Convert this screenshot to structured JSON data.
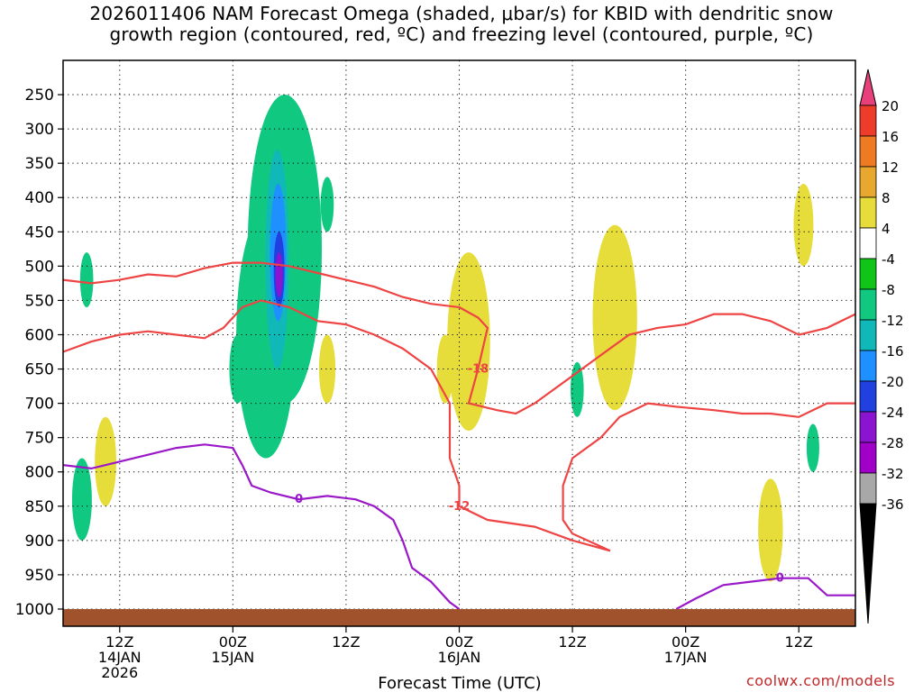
{
  "chart_data": {
    "type": "heatmap",
    "title_line1": "2026011406 NAM Forecast Omega (shaded, μbar/s) for KBID with dendritic snow",
    "title_line2": "growth region (contoured, red, ºC) and freezing level (contoured, purple, ºC)",
    "xlabel": "Forecast Time (UTC)",
    "ylabel": "",
    "credit": "coolwx.com/models",
    "y_axis": {
      "ticks": [
        250,
        300,
        350,
        400,
        450,
        500,
        550,
        600,
        650,
        700,
        750,
        800,
        850,
        900,
        950,
        1000
      ],
      "ylim": [
        200,
        1025
      ]
    },
    "x_axis": {
      "xlim": [
        0,
        84
      ],
      "ticks": [
        {
          "hour": 6,
          "lines": [
            "12Z",
            "14JAN",
            "2026"
          ]
        },
        {
          "hour": 18,
          "lines": [
            "00Z",
            "15JAN"
          ]
        },
        {
          "hour": 30,
          "lines": [
            "12Z"
          ]
        },
        {
          "hour": 42,
          "lines": [
            "00Z",
            "16JAN"
          ]
        },
        {
          "hour": 54,
          "lines": [
            "12Z"
          ]
        },
        {
          "hour": 66,
          "lines": [
            "00Z",
            "17JAN"
          ]
        },
        {
          "hour": 78,
          "lines": [
            "12Z"
          ]
        }
      ]
    },
    "colorbar": {
      "labels": [
        "20",
        "16",
        "12",
        "8",
        "4",
        "-4",
        "-8",
        "-12",
        "-16",
        "-20",
        "-24",
        "-28",
        "-32",
        "-36"
      ],
      "colors": [
        "#e8407a",
        "#ee3c2a",
        "#ee7a24",
        "#e8a830",
        "#e6dc3a",
        "#ffffff",
        "#10c418",
        "#10c880",
        "#10b8b8",
        "#1e90ff",
        "#2040e0",
        "#8a14d0",
        "#a000c8",
        "#a8a8a8",
        "#000000"
      ]
    },
    "contours": [
      {
        "name": "dgz-minus18",
        "color": "#ee4444",
        "label": "-18",
        "points": [
          [
            0,
            520
          ],
          [
            3,
            525
          ],
          [
            6,
            520
          ],
          [
            9,
            512
          ],
          [
            12,
            515
          ],
          [
            15,
            503
          ],
          [
            18,
            495
          ],
          [
            21,
            495
          ],
          [
            24,
            500
          ],
          [
            27,
            510
          ],
          [
            30,
            520
          ],
          [
            33,
            530
          ],
          [
            36,
            545
          ],
          [
            39,
            555
          ],
          [
            42,
            560
          ],
          [
            44,
            575
          ],
          [
            45,
            590
          ],
          [
            44,
            650
          ],
          [
            43,
            700
          ],
          [
            46,
            710
          ],
          [
            48,
            715
          ],
          [
            50,
            700
          ],
          [
            54,
            660
          ],
          [
            56,
            640
          ],
          [
            58,
            620
          ],
          [
            60,
            600
          ],
          [
            63,
            590
          ],
          [
            66,
            585
          ],
          [
            69,
            570
          ],
          [
            72,
            570
          ],
          [
            75,
            580
          ],
          [
            78,
            600
          ],
          [
            81,
            590
          ],
          [
            84,
            570
          ]
        ]
      },
      {
        "name": "dgz-minus12",
        "color": "#ee4444",
        "label": "-12",
        "points": [
          [
            0,
            625
          ],
          [
            3,
            610
          ],
          [
            6,
            600
          ],
          [
            9,
            595
          ],
          [
            12,
            600
          ],
          [
            15,
            605
          ],
          [
            17,
            590
          ],
          [
            19,
            560
          ],
          [
            21,
            550
          ],
          [
            24,
            560
          ],
          [
            27,
            580
          ],
          [
            30,
            585
          ],
          [
            33,
            600
          ],
          [
            36,
            620
          ],
          [
            39,
            650
          ],
          [
            41,
            700
          ],
          [
            41,
            780
          ],
          [
            42,
            820
          ],
          [
            42,
            850
          ],
          [
            45,
            870
          ],
          [
            50,
            880
          ],
          [
            54,
            900
          ],
          [
            58,
            915
          ],
          [
            54,
            890
          ],
          [
            53,
            870
          ],
          [
            53,
            820
          ],
          [
            54,
            780
          ],
          [
            57,
            750
          ],
          [
            59,
            720
          ],
          [
            62,
            700
          ],
          [
            65,
            705
          ],
          [
            69,
            710
          ],
          [
            72,
            715
          ],
          [
            75,
            715
          ],
          [
            78,
            720
          ],
          [
            81,
            700
          ],
          [
            84,
            700
          ]
        ]
      },
      {
        "name": "freezing-level",
        "color": "#9a18c8",
        "label": "0",
        "points": [
          [
            0,
            790
          ],
          [
            3,
            795
          ],
          [
            6,
            785
          ],
          [
            9,
            775
          ],
          [
            12,
            765
          ],
          [
            15,
            760
          ],
          [
            18,
            765
          ],
          [
            19,
            790
          ],
          [
            20,
            820
          ],
          [
            22,
            830
          ],
          [
            25,
            840
          ],
          [
            28,
            835
          ],
          [
            31,
            840
          ],
          [
            33,
            850
          ],
          [
            35,
            870
          ],
          [
            36,
            900
          ],
          [
            37,
            940
          ],
          [
            39,
            960
          ],
          [
            41,
            990
          ],
          [
            42,
            1000
          ]
        ]
      },
      {
        "name": "freezing-level-east",
        "color": "#9a18c8",
        "label": "0",
        "points": [
          [
            65,
            1000
          ],
          [
            67,
            985
          ],
          [
            70,
            965
          ],
          [
            73,
            960
          ],
          [
            76,
            955
          ],
          [
            79,
            955
          ],
          [
            81,
            980
          ],
          [
            84,
            980
          ]
        ]
      }
    ],
    "shaded_cells": [
      {
        "hour": 2.5,
        "p_top": 480,
        "p_bot": 560,
        "value": -8
      },
      {
        "hour": 2.0,
        "p_top": 780,
        "p_bot": 900,
        "value": -8
      },
      {
        "hour": 4.5,
        "p_top": 720,
        "p_bot": 850,
        "value": 4
      },
      {
        "hour": 18.5,
        "p_top": 600,
        "p_bot": 700,
        "value": -8
      },
      {
        "hour": 21.5,
        "p_top": 420,
        "p_bot": 780,
        "value": -8
      },
      {
        "hour": 22.0,
        "p_top": 350,
        "p_bot": 620,
        "value": -12
      },
      {
        "hour": 22.5,
        "p_top": 400,
        "p_bot": 550,
        "value": -20
      },
      {
        "hour": 23.5,
        "p_top": 250,
        "p_bot": 700,
        "value": -8
      },
      {
        "hour": 28.0,
        "p_top": 370,
        "p_bot": 450,
        "value": -8
      },
      {
        "hour": 28.0,
        "p_top": 600,
        "p_bot": 700,
        "value": 4
      },
      {
        "hour": 40.5,
        "p_top": 600,
        "p_bot": 700,
        "value": 4
      },
      {
        "hour": 43.0,
        "p_top": 480,
        "p_bot": 740,
        "value": 4
      },
      {
        "hour": 54.5,
        "p_top": 640,
        "p_bot": 720,
        "value": -8
      },
      {
        "hour": 58.5,
        "p_top": 440,
        "p_bot": 710,
        "value": 4
      },
      {
        "hour": 75.0,
        "p_top": 810,
        "p_bot": 960,
        "value": 4
      },
      {
        "hour": 78.5,
        "p_top": 380,
        "p_bot": 500,
        "value": 4
      },
      {
        "hour": 79.5,
        "p_top": 730,
        "p_bot": 800,
        "value": -8
      }
    ],
    "terrain": {
      "color": "#a0522d",
      "p_top": 1000
    }
  }
}
